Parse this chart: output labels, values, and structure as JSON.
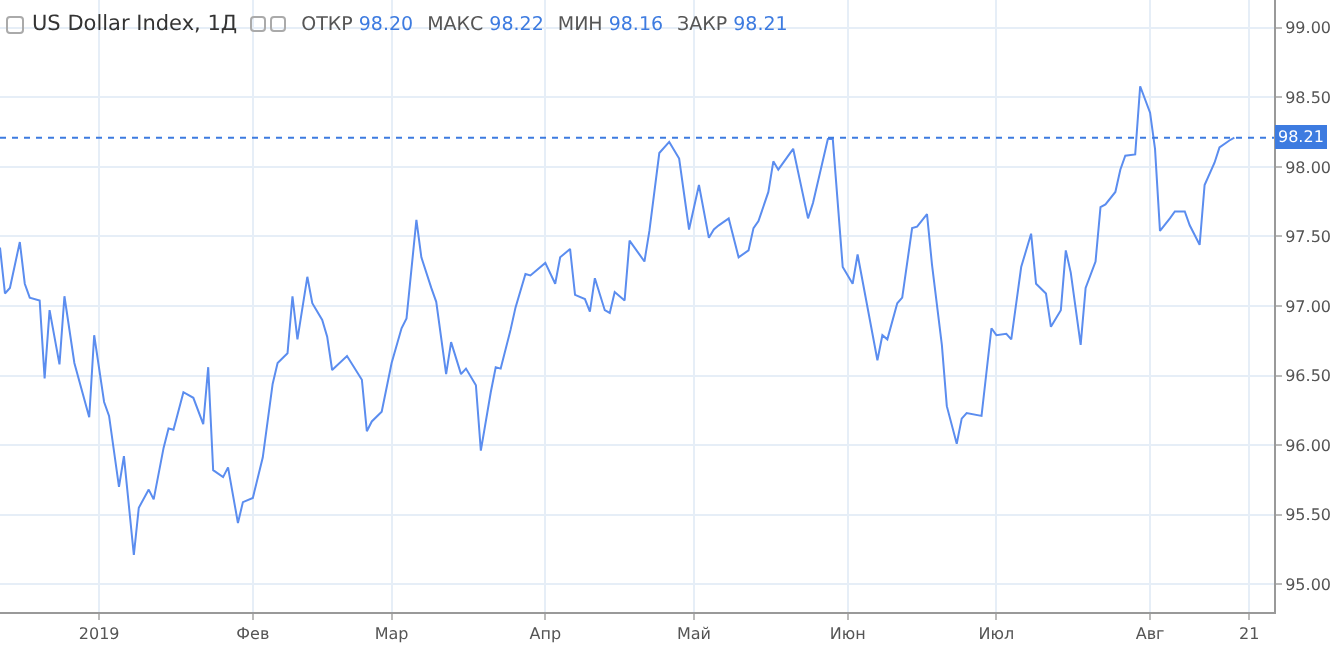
{
  "chart_data": {
    "type": "line",
    "title": "US Dollar Index, 1Д",
    "annotations": [
      "ОТКР 98.20",
      "МАКС 98.22",
      "МИН 98.16",
      "ЗАКР 98.21"
    ],
    "x": [
      "2018-12-12",
      "2018-12-13",
      "2018-12-14",
      "2018-12-16",
      "2018-12-17",
      "2018-12-18",
      "2018-12-20",
      "2018-12-21",
      "2018-12-22",
      "2018-12-24",
      "2018-12-25",
      "2018-12-27",
      "2018-12-30",
      "2018-12-31",
      "2019-01-02",
      "2019-01-03",
      "2019-01-05",
      "2019-01-06",
      "2019-01-08",
      "2019-01-09",
      "2019-01-11",
      "2019-01-12",
      "2019-01-14",
      "2019-01-15",
      "2019-01-16",
      "2019-01-18",
      "2019-01-20",
      "2019-01-22",
      "2019-01-23",
      "2019-01-24",
      "2019-01-26",
      "2019-01-27",
      "2019-01-29",
      "2019-01-30",
      "2019-02-01",
      "2019-02-03",
      "2019-02-05",
      "2019-02-06",
      "2019-02-08",
      "2019-02-09",
      "2019-02-10",
      "2019-02-12",
      "2019-02-13",
      "2019-02-15",
      "2019-02-16",
      "2019-02-17",
      "2019-02-20",
      "2019-02-23",
      "2019-02-24",
      "2019-02-25",
      "2019-02-27",
      "2019-03-01",
      "2019-03-03",
      "2019-03-04",
      "2019-03-06",
      "2019-03-07",
      "2019-03-09",
      "2019-03-10",
      "2019-03-12",
      "2019-03-13",
      "2019-03-15",
      "2019-03-16",
      "2019-03-18",
      "2019-03-19",
      "2019-03-21",
      "2019-03-22",
      "2019-03-23",
      "2019-03-25",
      "2019-03-26",
      "2019-03-28",
      "2019-03-29",
      "2019-04-01",
      "2019-04-03",
      "2019-04-04",
      "2019-04-06",
      "2019-04-07",
      "2019-04-09",
      "2019-04-10",
      "2019-04-11",
      "2019-04-13",
      "2019-04-14",
      "2019-04-15",
      "2019-04-17",
      "2019-04-18",
      "2019-04-21",
      "2019-04-22",
      "2019-04-24",
      "2019-04-26",
      "2019-04-28",
      "2019-04-30",
      "2019-05-02",
      "2019-05-04",
      "2019-05-05",
      "2019-05-06",
      "2019-05-08",
      "2019-05-10",
      "2019-05-12",
      "2019-05-13",
      "2019-05-14",
      "2019-05-16",
      "2019-05-17",
      "2019-05-18",
      "2019-05-21",
      "2019-05-24",
      "2019-05-25",
      "2019-05-28",
      "2019-05-29",
      "2019-05-31",
      "2019-06-02",
      "2019-06-03",
      "2019-06-07",
      "2019-06-08",
      "2019-06-09",
      "2019-06-11",
      "2019-06-12",
      "2019-06-14",
      "2019-06-15",
      "2019-06-17",
      "2019-06-18",
      "2019-06-20",
      "2019-06-21",
      "2019-06-23",
      "2019-06-24",
      "2019-06-25",
      "2019-06-28",
      "2019-06-30",
      "2019-07-01",
      "2019-07-03",
      "2019-07-04",
      "2019-07-06",
      "2019-07-08",
      "2019-07-09",
      "2019-07-11",
      "2019-07-12",
      "2019-07-14",
      "2019-07-15",
      "2019-07-16",
      "2019-07-18",
      "2019-07-19",
      "2019-07-21",
      "2019-07-22",
      "2019-07-23",
      "2019-07-25",
      "2019-07-26",
      "2019-07-27",
      "2019-07-29",
      "2019-07-30",
      "2019-08-01",
      "2019-08-02",
      "2019-08-03",
      "2019-08-05",
      "2019-08-06",
      "2019-08-08",
      "2019-08-09",
      "2019-08-11",
      "2019-08-12",
      "2019-08-14",
      "2019-08-15",
      "2019-08-17",
      "2019-08-18"
    ],
    "series": [
      {
        "color": "#5b8def",
        "values": [
          97.42,
          97.09,
          97.13,
          97.46,
          97.16,
          97.06,
          97.04,
          96.48,
          96.97,
          96.58,
          97.07,
          96.59,
          96.2,
          96.79,
          96.31,
          96.21,
          95.7,
          95.92,
          95.21,
          95.55,
          95.68,
          95.61,
          95.98,
          96.12,
          96.11,
          96.38,
          96.34,
          96.15,
          96.56,
          95.82,
          95.77,
          95.84,
          95.44,
          95.59,
          95.62,
          95.91,
          96.44,
          96.59,
          96.66,
          97.07,
          96.76,
          97.21,
          97.02,
          96.9,
          96.78,
          96.54,
          96.64,
          96.47,
          96.1,
          96.17,
          96.24,
          96.59,
          96.84,
          96.91,
          97.62,
          97.35,
          97.13,
          97.03,
          96.51,
          96.74,
          96.51,
          96.55,
          96.43,
          95.96,
          96.38,
          96.56,
          96.55,
          96.83,
          96.99,
          97.23,
          97.22,
          97.31,
          97.16,
          97.35,
          97.41,
          97.08,
          97.05,
          96.96,
          97.2,
          96.97,
          96.95,
          97.1,
          97.04,
          97.47,
          97.32,
          97.54,
          98.1,
          98.18,
          98.06,
          97.55,
          97.87,
          97.49,
          97.55,
          97.58,
          97.63,
          97.35,
          97.4,
          97.56,
          97.61,
          97.82,
          98.04,
          97.98,
          98.13,
          97.63,
          97.74,
          98.2,
          98.2,
          97.28,
          97.16,
          97.37,
          96.61,
          96.79,
          96.76,
          97.02,
          97.06,
          97.56,
          97.57,
          97.66,
          97.3,
          96.72,
          96.28,
          96.01,
          96.19,
          96.23,
          96.21,
          96.84,
          96.79,
          96.8,
          96.76,
          97.28,
          97.52,
          97.16,
          97.09,
          96.85,
          96.97,
          97.4,
          97.24,
          96.72,
          97.13,
          97.32,
          97.71,
          97.73,
          97.82,
          97.98,
          98.08,
          98.09,
          98.58,
          98.39,
          98.13,
          97.54,
          97.63,
          97.68,
          97.68,
          97.58,
          97.44,
          97.87,
          98.03,
          98.14,
          98.19,
          98.21
        ]
      }
    ],
    "xlim": [
      "2018-12-12",
      "2019-08-26"
    ],
    "xticks": [
      {
        "value": "2019-01-01",
        "label": "2019"
      },
      {
        "value": "2019-02-01",
        "label": "Фев"
      },
      {
        "value": "2019-03-01",
        "label": "Мар"
      },
      {
        "value": "2019-04-01",
        "label": "Апр"
      },
      {
        "value": "2019-05-01",
        "label": "Май"
      },
      {
        "value": "2019-06-01",
        "label": "Июн"
      },
      {
        "value": "2019-07-01",
        "label": "Июл"
      },
      {
        "value": "2019-08-01",
        "label": "Авг"
      },
      {
        "value": "2019-08-21",
        "label": "21"
      }
    ],
    "ylim": [
      94.8,
      99.2
    ],
    "yticks": [
      {
        "value": 95,
        "label": "95.00"
      },
      {
        "value": 95.5,
        "label": "95.50"
      },
      {
        "value": 96,
        "label": "96.00"
      },
      {
        "value": 96.5,
        "label": "96.50"
      },
      {
        "value": 97,
        "label": "97.00"
      },
      {
        "value": 97.5,
        "label": "97.50"
      },
      {
        "value": 98,
        "label": "98.00"
      },
      {
        "value": 98.5,
        "label": "98.50"
      },
      {
        "value": 99,
        "label": "99.00"
      }
    ],
    "ref_lines": [
      {
        "axis": "y",
        "value": 98.21,
        "label": "98.21",
        "color": "#3d7be0",
        "line_style": "dotted"
      }
    ],
    "grid": true,
    "marker": "none",
    "line_style": "solid"
  }
}
